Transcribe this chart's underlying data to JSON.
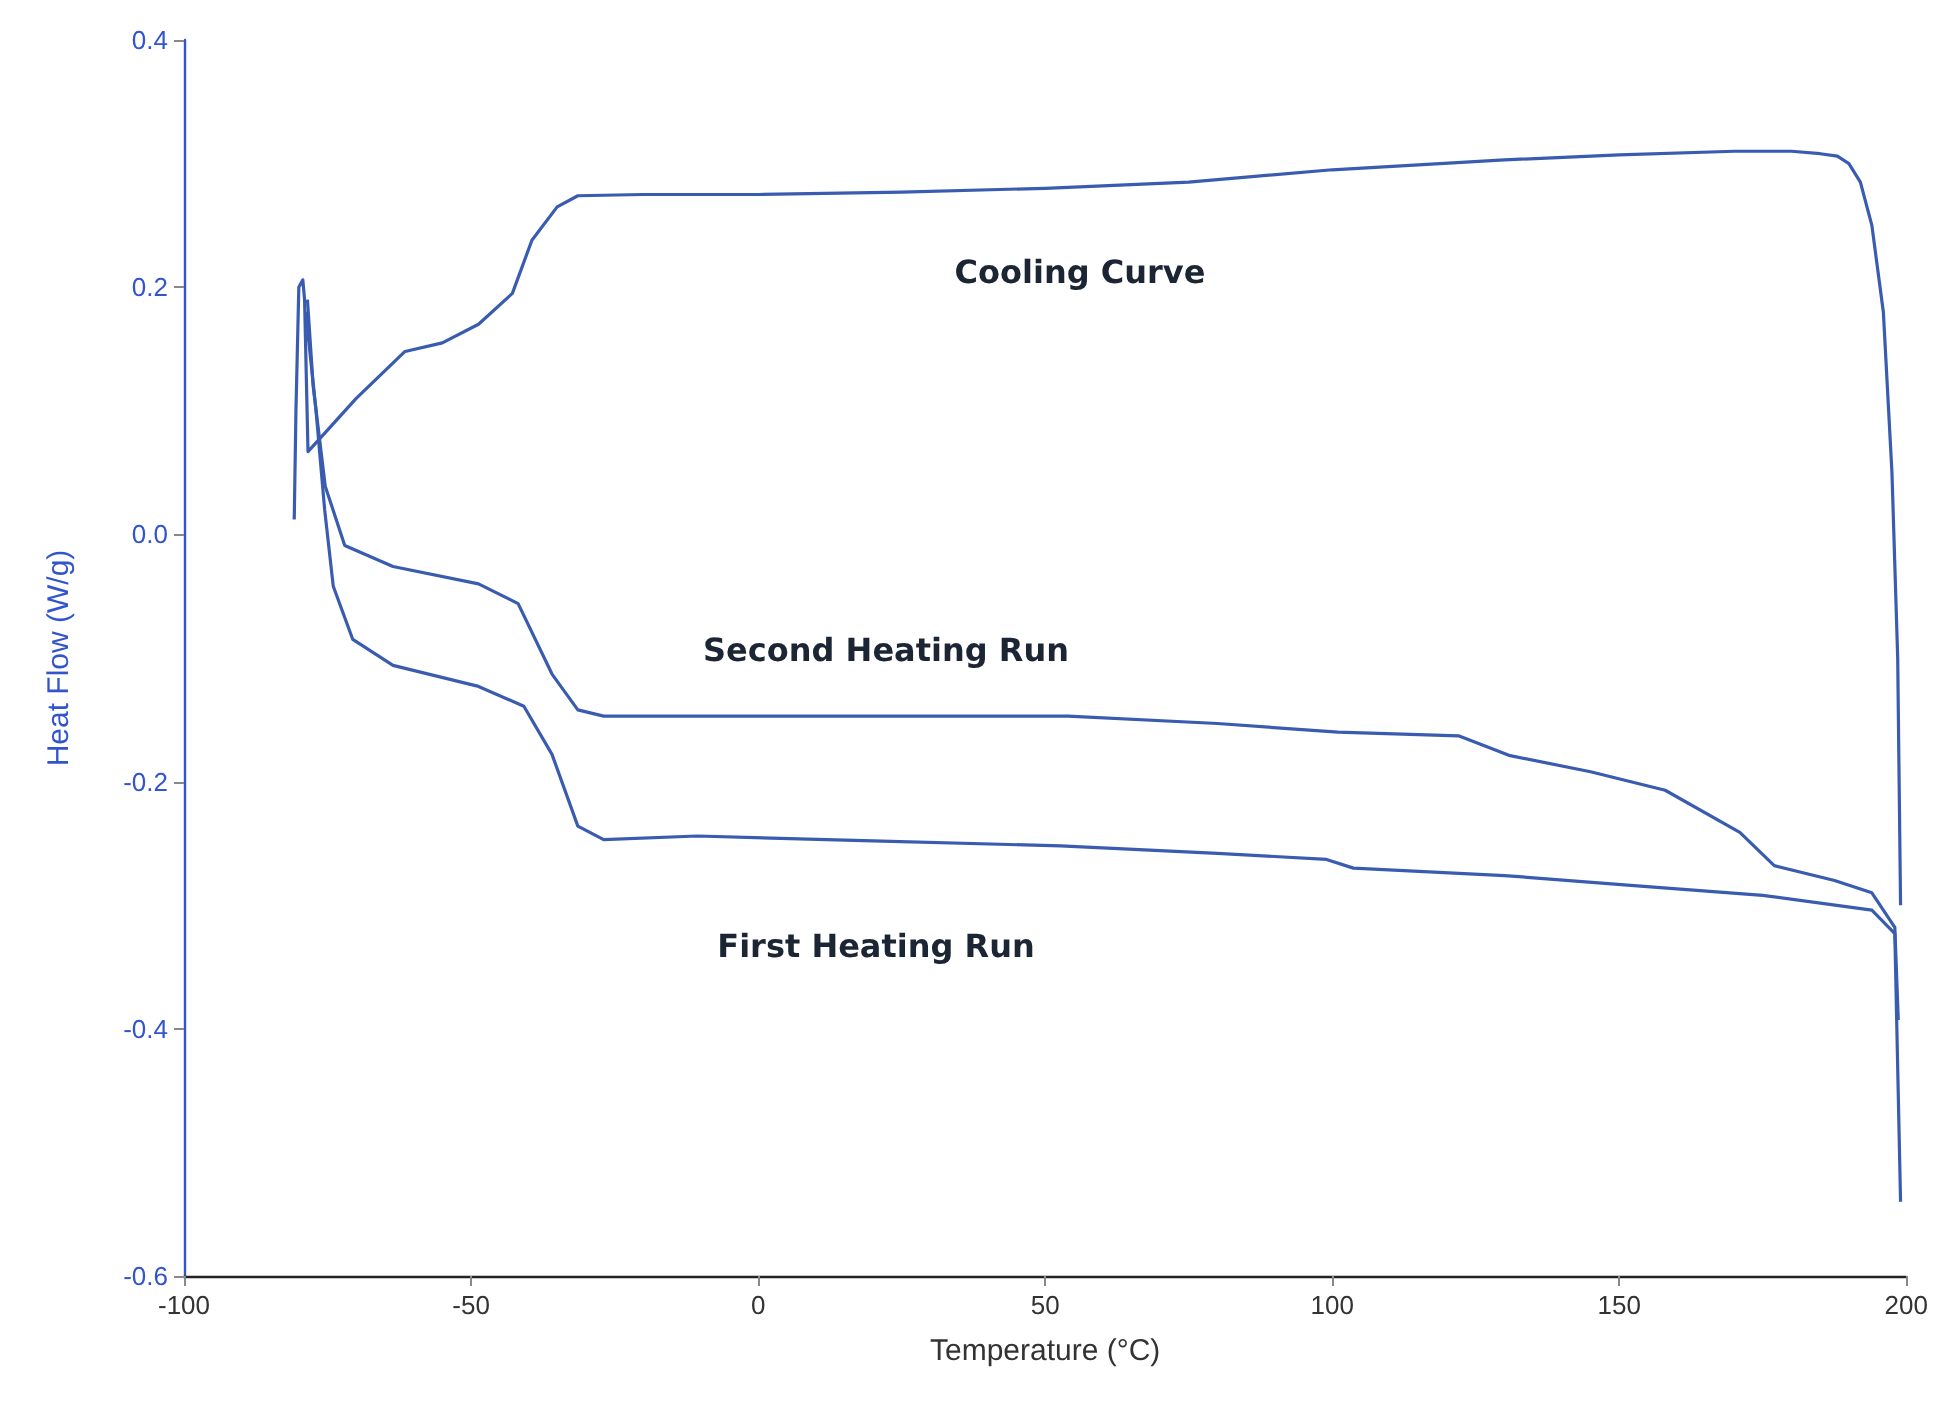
{
  "chart_data": {
    "type": "line",
    "xlabel": "Temperature (°C)",
    "ylabel": "Heat Flow (W/g)",
    "xlim": [
      -100,
      200
    ],
    "xticks": [
      -100,
      -50,
      0,
      50,
      100,
      150,
      200
    ],
    "ylim": [
      -0.6,
      0.4
    ],
    "yticks": [
      -0.6,
      -0.4,
      -0.2,
      {
        "value": 0,
        "label": "0.0"
      },
      0.2,
      0.4
    ],
    "grid": false,
    "marker": "none",
    "line_style": "solid",
    "series": [
      {
        "name": "Cooling Curve",
        "color": "#3a5cb0",
        "x": [
          199,
          198.5,
          197.5,
          196,
          194,
          192,
          190,
          188,
          185,
          180,
          170,
          150,
          130,
          100,
          75,
          50,
          25,
          0,
          -20,
          -31.4,
          -35,
          -39.4,
          -42.8,
          -48.7,
          -55,
          -61.5,
          -70,
          -78.4,
          -79,
          -79.3,
          -80,
          -80.5,
          -80.8
        ],
        "values": [
          -0.3,
          -0.1,
          0.05,
          0.18,
          0.25,
          0.285,
          0.3,
          0.306,
          0.308,
          0.31,
          0.31,
          0.307,
          0.303,
          0.295,
          0.285,
          0.28,
          0.277,
          0.275,
          0.275,
          0.274,
          0.265,
          0.238,
          0.195,
          0.17,
          0.155,
          0.148,
          0.11,
          0.067,
          0.19,
          0.206,
          0.2,
          0.1,
          0.012
        ]
      },
      {
        "name": "Second Heating Run",
        "color": "#3a5cb0",
        "x": [
          -78.5,
          -77.5,
          -75.4,
          -72,
          -63.6,
          -48.7,
          -41.8,
          -35.9,
          -31.4,
          -26.9,
          0,
          54,
          80,
          101,
          122,
          131,
          145,
          158,
          171,
          177,
          187.5,
          194,
          198,
          198.6
        ],
        "values": [
          0.19,
          0.12,
          0.039,
          -0.009,
          -0.026,
          -0.04,
          -0.056,
          -0.113,
          -0.142,
          -0.147,
          -0.147,
          -0.147,
          -0.153,
          -0.16,
          -0.163,
          -0.179,
          -0.192,
          -0.207,
          -0.241,
          -0.268,
          -0.28,
          -0.29,
          -0.318,
          -0.393
        ]
      },
      {
        "name": "First Heating Run",
        "color": "#3a5cb0",
        "x": [
          -78.8,
          -77,
          -75.5,
          -74,
          -70.6,
          -63.6,
          -48.7,
          -40.8,
          -35.9,
          -31.4,
          -26.9,
          -10.6,
          20,
          52.7,
          80,
          99,
          103.7,
          130,
          152,
          175,
          194,
          198,
          199
        ],
        "values": [
          0.18,
          0.1,
          0.02,
          -0.042,
          -0.085,
          -0.106,
          -0.123,
          -0.139,
          -0.178,
          -0.236,
          -0.247,
          -0.244,
          -0.248,
          -0.252,
          -0.258,
          -0.263,
          -0.27,
          -0.276,
          -0.284,
          -0.292,
          -0.304,
          -0.323,
          -0.54
        ]
      }
    ]
  }
}
